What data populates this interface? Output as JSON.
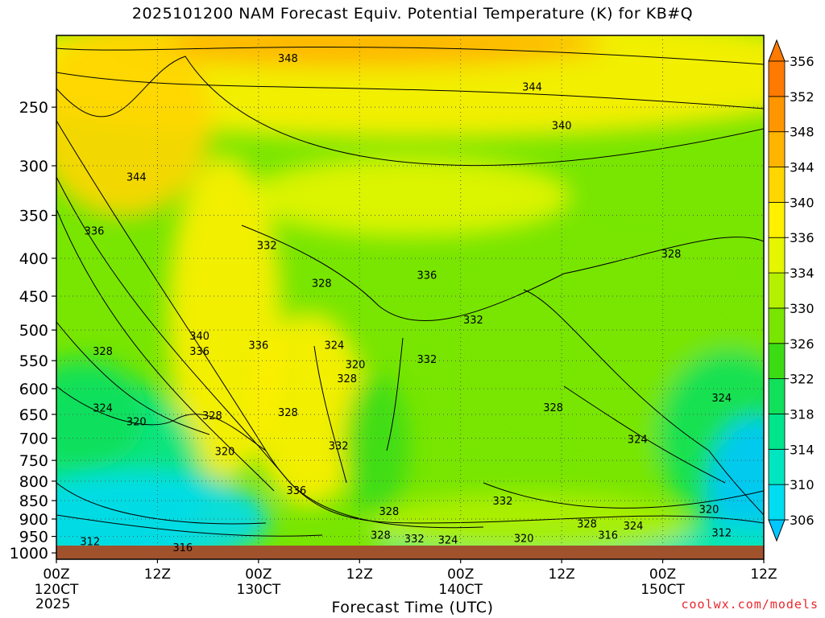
{
  "chart_data": {
    "type": "heatmap",
    "title": "2025101200 NAM Forecast Equiv. Potential Temperature (K) for KB#Q",
    "xlabel": "Forecast Time (UTC)",
    "ylabel": "",
    "credit": "coolwx.com/models",
    "x_ticks": [
      {
        "hour": 0,
        "label": "00Z",
        "sub": "120CT",
        "sub2": "2025"
      },
      {
        "hour": 12,
        "label": "12Z",
        "sub": "",
        "sub2": ""
      },
      {
        "hour": 24,
        "label": "00Z",
        "sub": "130CT",
        "sub2": ""
      },
      {
        "hour": 36,
        "label": "12Z",
        "sub": "",
        "sub2": ""
      },
      {
        "hour": 48,
        "label": "00Z",
        "sub": "140CT",
        "sub2": ""
      },
      {
        "hour": 60,
        "label": "12Z",
        "sub": "",
        "sub2": ""
      },
      {
        "hour": 72,
        "label": "00Z",
        "sub": "150CT",
        "sub2": ""
      },
      {
        "hour": 84,
        "label": "12Z",
        "sub": "",
        "sub2": ""
      }
    ],
    "xlim": [
      0,
      84
    ],
    "y_ticks": [
      250,
      300,
      350,
      400,
      450,
      500,
      550,
      600,
      650,
      700,
      750,
      800,
      850,
      900,
      950,
      1000
    ],
    "ylim": [
      1020,
      200
    ],
    "y_scale": "log",
    "grid": true,
    "colorbar": {
      "unit": "K",
      "levels": [
        306,
        310,
        314,
        318,
        322,
        326,
        330,
        334,
        336,
        340,
        344,
        348,
        352,
        356
      ],
      "colors": [
        "#00c8ff",
        "#00dcf0",
        "#00e6c0",
        "#00e48c",
        "#10e05a",
        "#3cdc14",
        "#78e600",
        "#b4f000",
        "#e6f500",
        "#fff000",
        "#ffd600",
        "#ffb400",
        "#ff9600",
        "#ff7a00"
      ]
    },
    "contour_labels": [
      {
        "value": "348",
        "hour": 27.5,
        "p": 215
      },
      {
        "value": "344",
        "hour": 56.5,
        "p": 235
      },
      {
        "value": "340",
        "hour": 60.0,
        "p": 265
      },
      {
        "value": "344",
        "hour": 9.5,
        "p": 311
      },
      {
        "value": "336",
        "hour": 4.5,
        "p": 368
      },
      {
        "value": "332",
        "hour": 25.0,
        "p": 385
      },
      {
        "value": "336",
        "hour": 44.0,
        "p": 422
      },
      {
        "value": "328",
        "hour": 31.5,
        "p": 433
      },
      {
        "value": "328",
        "hour": 73.0,
        "p": 395
      },
      {
        "value": "332",
        "hour": 49.5,
        "p": 485
      },
      {
        "value": "340",
        "hour": 17.0,
        "p": 510
      },
      {
        "value": "336",
        "hour": 17.0,
        "p": 535
      },
      {
        "value": "336",
        "hour": 24.0,
        "p": 525
      },
      {
        "value": "324",
        "hour": 33.0,
        "p": 525
      },
      {
        "value": "328",
        "hour": 5.5,
        "p": 535
      },
      {
        "value": "320",
        "hour": 35.5,
        "p": 557
      },
      {
        "value": "332",
        "hour": 44.0,
        "p": 548
      },
      {
        "value": "328",
        "hour": 34.5,
        "p": 582
      },
      {
        "value": "324",
        "hour": 5.5,
        "p": 638
      },
      {
        "value": "328",
        "hour": 27.5,
        "p": 647
      },
      {
        "value": "328",
        "hour": 18.5,
        "p": 653
      },
      {
        "value": "328",
        "hour": 59.0,
        "p": 637
      },
      {
        "value": "324",
        "hour": 79.0,
        "p": 618
      },
      {
        "value": "320",
        "hour": 9.5,
        "p": 666
      },
      {
        "value": "332",
        "hour": 33.5,
        "p": 718
      },
      {
        "value": "320",
        "hour": 20.0,
        "p": 730
      },
      {
        "value": "324",
        "hour": 69.0,
        "p": 703
      },
      {
        "value": "336",
        "hour": 28.5,
        "p": 825
      },
      {
        "value": "332",
        "hour": 53.0,
        "p": 852
      },
      {
        "value": "328",
        "hour": 39.5,
        "p": 880
      },
      {
        "value": "320",
        "hour": 77.5,
        "p": 875
      },
      {
        "value": "328",
        "hour": 63.0,
        "p": 915
      },
      {
        "value": "324",
        "hour": 68.5,
        "p": 920
      },
      {
        "value": "328",
        "hour": 38.5,
        "p": 948
      },
      {
        "value": "332",
        "hour": 42.5,
        "p": 958
      },
      {
        "value": "324",
        "hour": 46.5,
        "p": 962
      },
      {
        "value": "320",
        "hour": 55.5,
        "p": 957
      },
      {
        "value": "316",
        "hour": 65.5,
        "p": 948
      },
      {
        "value": "312",
        "hour": 4.0,
        "p": 966
      },
      {
        "value": "312",
        "hour": 79.0,
        "p": 940
      },
      {
        "value": "316",
        "hour": 15.0,
        "p": 985
      }
    ]
  }
}
